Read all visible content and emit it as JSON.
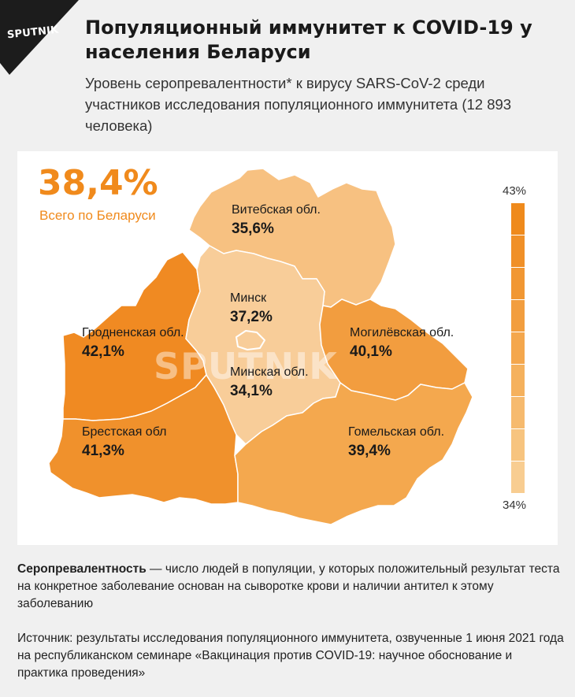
{
  "brand": "SPUTNIK",
  "title": "Популяционный иммунитет к COVID-19 у населения Беларуси",
  "subtitle": "Уровень серопревалентности* к вирусу SARS-CoV-2 среди участников исследования популяционного иммунитета (12 893 человека)",
  "total": {
    "value": "38,4%",
    "label": "Всего по Беларуси"
  },
  "regions": [
    {
      "name": "Витебская обл.",
      "value": "35,6%",
      "percent": 35.6,
      "color": "#f7c181"
    },
    {
      "name": "Минск",
      "value": "37,2%",
      "percent": 37.2,
      "color": "#f8cd99"
    },
    {
      "name": "Гродненская обл.",
      "value": "42,1%",
      "percent": 42.1,
      "color": "#f08a22"
    },
    {
      "name": "Минская обл.",
      "value": "34,1%",
      "percent": 34.1,
      "color": "#f8cd99"
    },
    {
      "name": "Могилёвская обл.",
      "value": "40,1%",
      "percent": 40.1,
      "color": "#f29d3f"
    },
    {
      "name": "Брестская обл",
      "value": "41,3%",
      "percent": 41.3,
      "color": "#f0912c"
    },
    {
      "name": "Гомельская обл.",
      "value": "39,4%",
      "percent": 39.4,
      "color": "#f4a84e"
    }
  ],
  "scale": {
    "max_label": "43%",
    "min_label": "34%",
    "colors": [
      "#ef8a1c",
      "#f09028",
      "#f19733",
      "#f29e3f",
      "#f4a74d",
      "#f5b15d",
      "#f6ba6e",
      "#f7c47f",
      "#f8cd91"
    ]
  },
  "watermark": "SPUTNIK",
  "definition": {
    "term": "Серопревалентность",
    "text": " — число людей в популяции, у которых положительный результат теста на конкретное заболевание основан на сыворотке крови и наличии антител к этому заболеванию"
  },
  "source": "Источник: результаты исследования популяционного иммунитета, озвученные 1 июня 2021 года на республиканском семинаре «Вакцинация против COVID-19: научное обоснование и практика проведения»"
}
